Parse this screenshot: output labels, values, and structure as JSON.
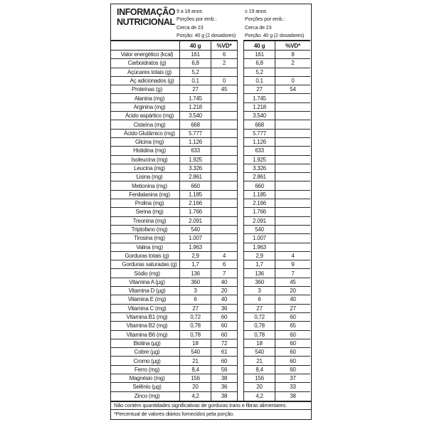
{
  "table": {
    "title": "INFORMAÇÃO NUTRICIONAL",
    "groups": [
      {
        "age_range": "9 a 18 anos",
        "servings_label": "Porções por emb.:",
        "servings": "Cerca de 23",
        "portion": "Porção: 40 g (2 dosadores)"
      },
      {
        "age_range": "≥ 19 anos",
        "servings_label": "Porções por emb.:",
        "servings": "Cerca de 23",
        "portion": "Porção: 40 g (2 dosadores)"
      }
    ],
    "columns": {
      "amount": "40 g",
      "dv": "%VD*"
    },
    "rows": [
      {
        "label": "Valor energético (kcal)",
        "indent": 0,
        "g1": [
          "161",
          "6"
        ],
        "g2": [
          "161",
          "8"
        ]
      },
      {
        "label": "Carboidratos (g)",
        "indent": 0,
        "g1": [
          "6,8",
          "2"
        ],
        "g2": [
          "6,8",
          "2"
        ]
      },
      {
        "label": "Açúcares totais (g)",
        "indent": 1,
        "g1": [
          "5,2",
          ""
        ],
        "g2": [
          "5,2",
          ""
        ]
      },
      {
        "label": "Aç adicionados (g)",
        "indent": 2,
        "g1": [
          "0,1",
          "0"
        ],
        "g2": [
          "0,1",
          "0"
        ]
      },
      {
        "label": "Proteínas (g)",
        "indent": 0,
        "g1": [
          "27",
          "45"
        ],
        "g2": [
          "27",
          "54"
        ]
      },
      {
        "label": "Alanina (mg)",
        "indent": 1,
        "g1": [
          "1.745",
          ""
        ],
        "g2": [
          "1.745",
          ""
        ]
      },
      {
        "label": "Arginina (mg)",
        "indent": 1,
        "g1": [
          "1.218",
          ""
        ],
        "g2": [
          "1.218",
          ""
        ]
      },
      {
        "label": "Ácido aspártico (mg)",
        "indent": 1,
        "g1": [
          "3.540",
          ""
        ],
        "g2": [
          "3.540",
          ""
        ]
      },
      {
        "label": "Cisteína (mg)",
        "indent": 1,
        "g1": [
          "668",
          ""
        ],
        "g2": [
          "668",
          ""
        ]
      },
      {
        "label": "Ácido Glutâmico (mg)",
        "indent": 1,
        "g1": [
          "5.777",
          ""
        ],
        "g2": [
          "5.777",
          ""
        ]
      },
      {
        "label": "Glicina (mg)",
        "indent": 1,
        "g1": [
          "1.126",
          ""
        ],
        "g2": [
          "1.126",
          ""
        ]
      },
      {
        "label": "Histidina (mg)",
        "indent": 1,
        "g1": [
          "633",
          ""
        ],
        "g2": [
          "633",
          ""
        ]
      },
      {
        "label": "Isoleucina (mg)",
        "indent": 1,
        "g1": [
          "1.925",
          ""
        ],
        "g2": [
          "1.925",
          ""
        ]
      },
      {
        "label": "Leucina (mg)",
        "indent": 1,
        "g1": [
          "3.326",
          ""
        ],
        "g2": [
          "3.326",
          ""
        ]
      },
      {
        "label": "Lisina (mg)",
        "indent": 1,
        "g1": [
          "2.861",
          ""
        ],
        "g2": [
          "2.861",
          ""
        ]
      },
      {
        "label": "Metionina (mg)",
        "indent": 1,
        "g1": [
          "660",
          ""
        ],
        "g2": [
          "660",
          ""
        ]
      },
      {
        "label": "Fenilalanina (mg)",
        "indent": 1,
        "g1": [
          "1.185",
          ""
        ],
        "g2": [
          "1.185",
          ""
        ]
      },
      {
        "label": "Prolina (mg)",
        "indent": 1,
        "g1": [
          "2.166",
          ""
        ],
        "g2": [
          "2.166",
          ""
        ]
      },
      {
        "label": "Serina (mg)",
        "indent": 1,
        "g1": [
          "1.766",
          ""
        ],
        "g2": [
          "1.766",
          ""
        ]
      },
      {
        "label": "Treonina (mg)",
        "indent": 1,
        "g1": [
          "2.091",
          ""
        ],
        "g2": [
          "2.091",
          ""
        ]
      },
      {
        "label": "Triptofano (mg)",
        "indent": 1,
        "g1": [
          "540",
          ""
        ],
        "g2": [
          "540",
          ""
        ]
      },
      {
        "label": "Tirosina (mg)",
        "indent": 1,
        "g1": [
          "1.007",
          ""
        ],
        "g2": [
          "1.007",
          ""
        ]
      },
      {
        "label": "Valina (mg)",
        "indent": 1,
        "g1": [
          "1.963",
          ""
        ],
        "g2": [
          "1.963",
          ""
        ]
      },
      {
        "label": "Gorduras totais (g)",
        "indent": 0,
        "g1": [
          "2,9",
          "4"
        ],
        "g2": [
          "2,9",
          "4"
        ]
      },
      {
        "label": "Gorduras saturadas (g)",
        "indent": 1,
        "g1": [
          "1,7",
          "6"
        ],
        "g2": [
          "1,7",
          "9"
        ]
      },
      {
        "label": "Sódio (mg)",
        "indent": 0,
        "g1": [
          "136",
          "7"
        ],
        "g2": [
          "136",
          "7"
        ]
      },
      {
        "label": "Vitamina A (µg)",
        "indent": 0,
        "g1": [
          "360",
          "40"
        ],
        "g2": [
          "360",
          "45"
        ]
      },
      {
        "label": "Vitamina D (µg)",
        "indent": 0,
        "g1": [
          "3",
          "20"
        ],
        "g2": [
          "3",
          "20"
        ]
      },
      {
        "label": "Vitamina E (mg)",
        "indent": 0,
        "g1": [
          "6",
          "40"
        ],
        "g2": [
          "6",
          "40"
        ]
      },
      {
        "label": "Vitamina C (mg)",
        "indent": 0,
        "g1": [
          "27",
          "36"
        ],
        "g2": [
          "27",
          "27"
        ]
      },
      {
        "label": "Vitamina B1 (mg)",
        "indent": 0,
        "g1": [
          "0,72",
          "60"
        ],
        "g2": [
          "0,72",
          "60"
        ]
      },
      {
        "label": "Vitamina B2 (mg)",
        "indent": 0,
        "g1": [
          "0,78",
          "60"
        ],
        "g2": [
          "0,78",
          "65"
        ]
      },
      {
        "label": "Vitamina B6 (mg)",
        "indent": 0,
        "g1": [
          "0,78",
          "60"
        ],
        "g2": [
          "0,78",
          "60"
        ]
      },
      {
        "label": "Biotina (µg)",
        "indent": 0,
        "g1": [
          "18",
          "72"
        ],
        "g2": [
          "18",
          "60"
        ]
      },
      {
        "label": "Cobre (µg)",
        "indent": 0,
        "g1": [
          "540",
          "61"
        ],
        "g2": [
          "540",
          "60"
        ]
      },
      {
        "label": "Cromo (µg)",
        "indent": 0,
        "g1": [
          "21",
          "60"
        ],
        "g2": [
          "21",
          "60"
        ]
      },
      {
        "label": "Ferro (mg)",
        "indent": 0,
        "g1": [
          "8,4",
          "56"
        ],
        "g2": [
          "8,4",
          "60"
        ]
      },
      {
        "label": "Magnésio (mg)",
        "indent": 0,
        "g1": [
          "156",
          "38"
        ],
        "g2": [
          "156",
          "37"
        ]
      },
      {
        "label": "Selênio (µg)",
        "indent": 0,
        "g1": [
          "20",
          "36"
        ],
        "g2": [
          "20",
          "33"
        ]
      },
      {
        "label": "Zinco (mg)",
        "indent": 0,
        "g1": [
          "4,2",
          "38"
        ],
        "g2": [
          "4,2",
          "38"
        ]
      }
    ],
    "notes": {
      "no_trans": "Não contém quantidades significativas de gorduras trans e fibras alimentares.",
      "dv_footnote": "*Percentual de valores diários fornecidos pela porção."
    }
  }
}
